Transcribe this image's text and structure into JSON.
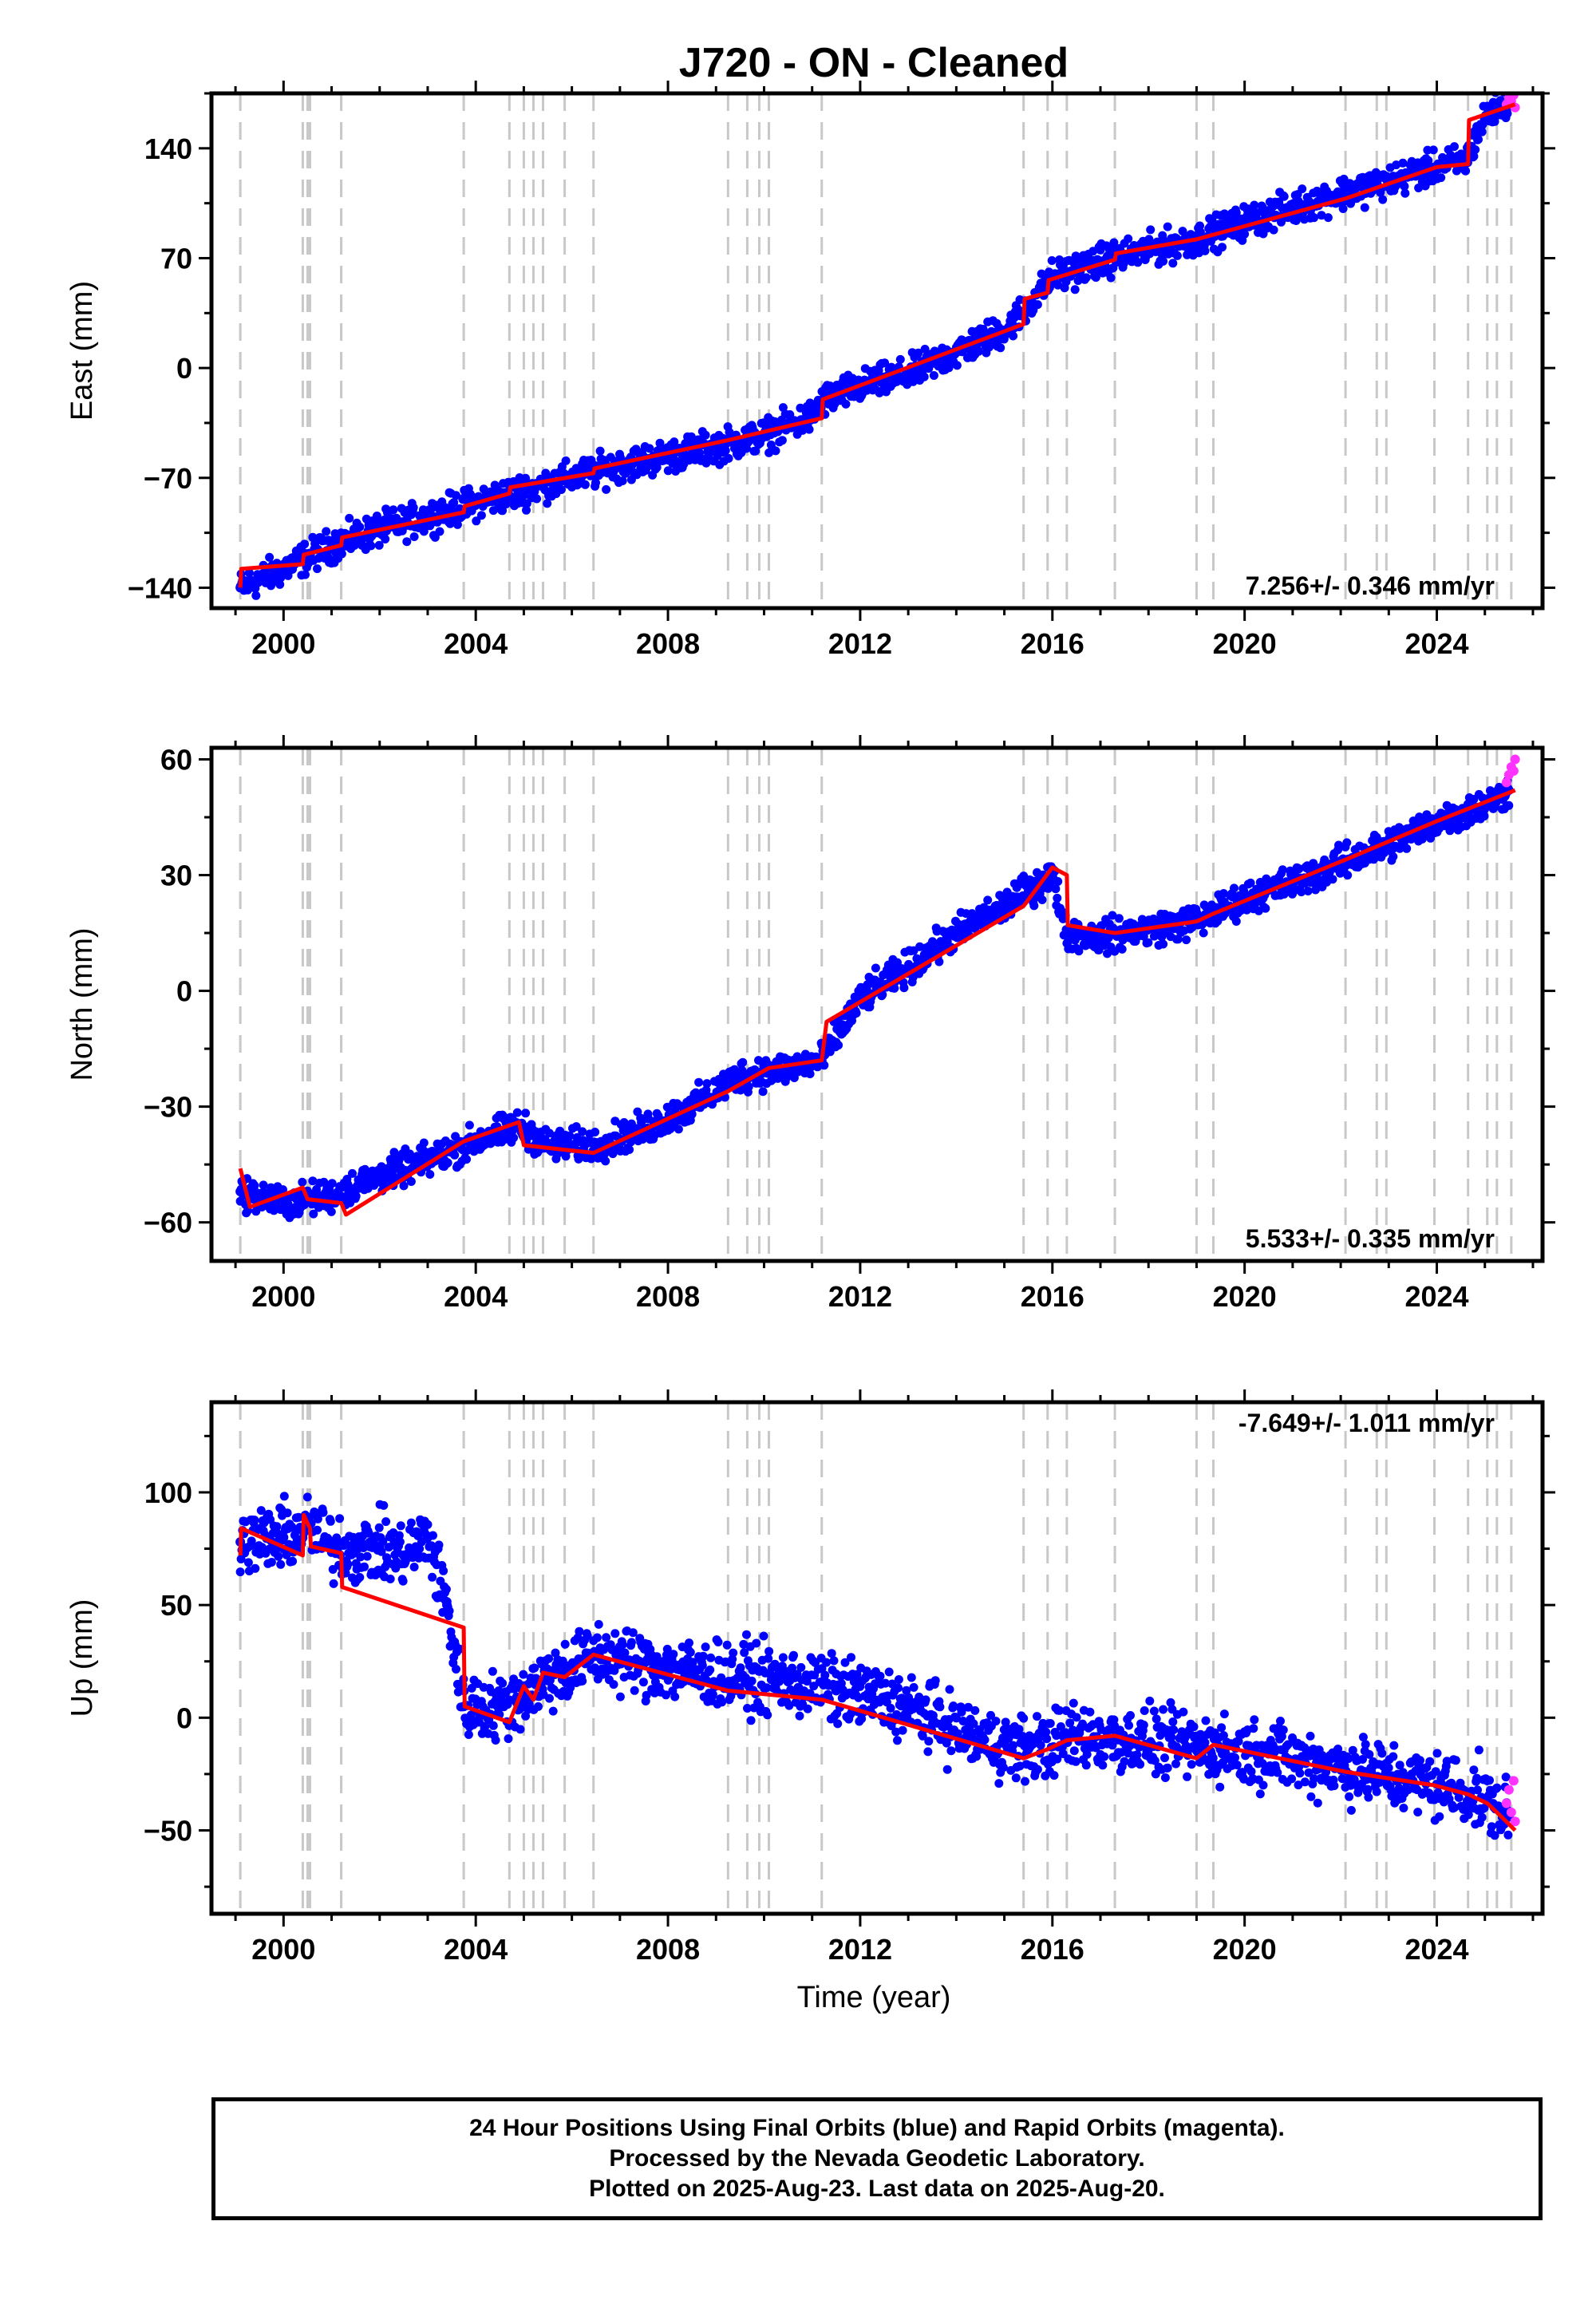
{
  "title": "J720  - ON - Cleaned",
  "xlabel": "Time (year)",
  "footer": {
    "line1": "24 Hour Positions Using Final Orbits (blue) and Rapid Orbits (magenta).",
    "line2": "Processed by the Nevada Geodetic Laboratory.",
    "line3": "Plotted on 2025-Aug-23. Last data on 2025-Aug-20."
  },
  "colors": {
    "final_orbits": "#0000ff",
    "rapid_orbits": "#ff33ff",
    "model": "#ff0000",
    "event_lines": "#c8c8c8"
  },
  "chart_data": [
    {
      "type": "scatter",
      "panel": "east",
      "ylabel": "East (mm)",
      "rate_label": "7.256+/- 0.346 mm/yr",
      "xlim": [
        1998.5,
        2026.2
      ],
      "ylim": [
        -153,
        175
      ],
      "xticks": [
        2000,
        2004,
        2008,
        2012,
        2016,
        2020,
        2024
      ],
      "yticks": [
        -140,
        -70,
        0,
        70,
        140
      ],
      "grid": false,
      "event_lines": [
        1999.1,
        2000.4,
        2000.5,
        2000.55,
        2001.2,
        2003.75,
        2004.7,
        2005.0,
        2005.2,
        2005.4,
        2005.85,
        2006.45,
        2009.25,
        2009.65,
        2009.9,
        2010.1,
        2011.2,
        2015.4,
        2015.9,
        2016.3,
        2017.3,
        2019.0,
        2019.35,
        2022.1,
        2022.75,
        2022.95,
        2023.95,
        2024.65,
        2025.05,
        2025.25,
        2025.55
      ],
      "series": [
        {
          "name": "Final Orbits",
          "role": "final",
          "x": [
            1999.1,
            2000.0,
            2001.0,
            2002.0,
            2003.0,
            2004.0,
            2005.0,
            2006.0,
            2007.0,
            2008.0,
            2009.0,
            2010.0,
            2011.0,
            2011.2,
            2012.0,
            2013.0,
            2014.0,
            2015.0,
            2015.5,
            2016.0,
            2017.0,
            2018.0,
            2019.0,
            2020.0,
            2021.0,
            2022.0,
            2023.0,
            2024.0,
            2024.6,
            2025.0,
            2025.5
          ],
          "y": [
            -140,
            -128,
            -113,
            -103,
            -95,
            -86,
            -78,
            -70,
            -62,
            -56,
            -50,
            -43,
            -31,
            -21,
            -12,
            -4,
            10,
            24,
            40,
            58,
            68,
            75,
            82,
            93,
            102,
            111,
            119,
            128,
            132,
            160,
            170
          ]
        },
        {
          "name": "Rapid Orbits",
          "role": "rapid",
          "x": [
            2025.45,
            2025.5,
            2025.55,
            2025.6,
            2025.63
          ],
          "y": [
            168,
            172,
            170,
            174,
            166
          ]
        },
        {
          "name": "Model",
          "role": "model",
          "x": [
            1999.1,
            1999.12,
            2000.4,
            2000.42,
            2001.2,
            2001.22,
            2003.75,
            2003.77,
            2004.7,
            2004.72,
            2006.45,
            2006.47,
            2009.25,
            2011.2,
            2011.22,
            2015.4,
            2015.42,
            2015.9,
            2015.92,
            2017.3,
            2017.32,
            2019.0,
            2022.1,
            2024.0,
            2024.65,
            2024.67,
            2025.63
          ],
          "y": [
            -140,
            -128,
            -125,
            -119,
            -113,
            -108,
            -92,
            -88,
            -80,
            -76,
            -67,
            -64,
            -46,
            -32,
            -20,
            28,
            44,
            48,
            56,
            69,
            73,
            82,
            108,
            128,
            130,
            158,
            168
          ]
        }
      ]
    },
    {
      "type": "scatter",
      "panel": "north",
      "ylabel": "North (mm)",
      "rate_label": "5.533+/- 0.335 mm/yr",
      "xlim": [
        1998.5,
        2026.2
      ],
      "ylim": [
        -70,
        63
      ],
      "xticks": [
        2000,
        2004,
        2008,
        2012,
        2016,
        2020,
        2024
      ],
      "yticks": [
        -60,
        -30,
        0,
        30,
        60
      ],
      "grid": false,
      "event_lines": [
        1999.1,
        2000.4,
        2000.5,
        2000.55,
        2001.2,
        2003.75,
        2004.7,
        2005.0,
        2005.2,
        2005.4,
        2005.85,
        2006.45,
        2009.25,
        2009.65,
        2009.9,
        2010.1,
        2011.2,
        2015.4,
        2015.9,
        2016.3,
        2017.3,
        2019.0,
        2019.35,
        2022.1,
        2022.75,
        2022.95,
        2023.95,
        2024.65,
        2025.05,
        2025.25,
        2025.55
      ],
      "series": [
        {
          "name": "Final Orbits",
          "role": "final",
          "x": [
            1999.1,
            2000.0,
            2001.0,
            2002.0,
            2003.0,
            2004.0,
            2004.9,
            2005.5,
            2006.5,
            2007.5,
            2008.5,
            2009.5,
            2010.5,
            2011.2,
            2012.0,
            2013.0,
            2014.0,
            2015.0,
            2016.0,
            2016.3,
            2017.0,
            2018.0,
            2019.0,
            2020.0,
            2021.0,
            2022.0,
            2023.0,
            2024.0,
            2025.0,
            2025.5
          ],
          "y": [
            -52,
            -55,
            -53,
            -48,
            -44,
            -39,
            -35,
            -40,
            -40,
            -36,
            -30,
            -22,
            -20,
            -18,
            -2,
            6,
            15,
            22,
            30,
            15,
            14,
            16,
            18,
            24,
            28,
            33,
            38,
            44,
            48,
            52
          ]
        },
        {
          "name": "Rapid Orbits",
          "role": "rapid",
          "x": [
            2025.45,
            2025.5,
            2025.55,
            2025.6,
            2025.63
          ],
          "y": [
            54,
            56,
            58,
            57,
            60
          ]
        },
        {
          "name": "Model",
          "role": "model",
          "x": [
            1999.1,
            1999.3,
            2000.4,
            2000.5,
            2001.2,
            2001.3,
            2003.75,
            2004.9,
            2005.0,
            2006.45,
            2009.25,
            2010.1,
            2011.2,
            2011.3,
            2015.4,
            2016.0,
            2016.3,
            2016.32,
            2017.3,
            2019.0,
            2019.35,
            2022.1,
            2024.0,
            2025.63
          ],
          "y": [
            -46,
            -56,
            -51,
            -54,
            -55,
            -58,
            -39,
            -34,
            -40,
            -42,
            -26,
            -20,
            -18,
            -8,
            22,
            32,
            30,
            17,
            15,
            18,
            20,
            34,
            44,
            52
          ]
        }
      ]
    },
    {
      "type": "scatter",
      "panel": "up",
      "ylabel": "Up (mm)",
      "rate_label": "-7.649+/- 1.011 mm/yr",
      "xlim": [
        1998.5,
        2026.2
      ],
      "ylim": [
        -87,
        140
      ],
      "xticks": [
        2000,
        2004,
        2008,
        2012,
        2016,
        2020,
        2024
      ],
      "yticks": [
        -50,
        0,
        50,
        100
      ],
      "grid": false,
      "event_lines": [
        1999.1,
        2000.4,
        2000.5,
        2000.55,
        2001.2,
        2003.75,
        2004.7,
        2005.0,
        2005.2,
        2005.4,
        2005.85,
        2006.45,
        2009.25,
        2009.65,
        2009.9,
        2010.1,
        2011.2,
        2015.4,
        2015.9,
        2016.3,
        2017.3,
        2019.0,
        2019.35,
        2022.1,
        2022.75,
        2022.95,
        2023.95,
        2024.65,
        2025.05,
        2025.25,
        2025.55
      ],
      "series": [
        {
          "name": "Final Orbits",
          "role": "final",
          "x": [
            1999.1,
            2000.0,
            2000.5,
            2001.0,
            2001.5,
            2002.0,
            2002.5,
            2003.0,
            2003.4,
            2003.75,
            2004.5,
            2005.0,
            2005.5,
            2006.0,
            2006.5,
            2007.5,
            2008.5,
            2009.5,
            2010.5,
            2011.5,
            2012.5,
            2013.5,
            2014.5,
            2015.5,
            2016.5,
            2017.5,
            2018.5,
            2019.5,
            2020.5,
            2021.5,
            2022.5,
            2023.5,
            2024.5,
            2025.0,
            2025.5
          ],
          "y": [
            78,
            80,
            84,
            76,
            74,
            76,
            72,
            80,
            50,
            5,
            5,
            10,
            18,
            22,
            28,
            24,
            20,
            18,
            16,
            12,
            8,
            0,
            -10,
            -14,
            -8,
            -10,
            -12,
            -14,
            -16,
            -20,
            -24,
            -28,
            -32,
            -36,
            -44
          ]
        },
        {
          "name": "Rapid Orbits",
          "role": "rapid",
          "x": [
            2025.45,
            2025.5,
            2025.55,
            2025.6,
            2025.63
          ],
          "y": [
            -38,
            -32,
            -42,
            -28,
            -46
          ]
        },
        {
          "name": "Model",
          "role": "model",
          "x": [
            1999.1,
            1999.12,
            2000.4,
            2000.42,
            2000.55,
            2000.57,
            2001.2,
            2001.22,
            2003.75,
            2003.77,
            2004.7,
            2005.0,
            2005.2,
            2005.4,
            2005.85,
            2006.45,
            2009.25,
            2011.2,
            2015.4,
            2015.9,
            2016.3,
            2017.3,
            2019.0,
            2019.35,
            2022.1,
            2023.95,
            2024.65,
            2025.05,
            2025.25,
            2025.63
          ],
          "y": [
            72,
            84,
            72,
            90,
            84,
            76,
            73,
            58,
            40,
            5,
            -2,
            14,
            8,
            20,
            18,
            28,
            12,
            8,
            -18,
            -14,
            -10,
            -8,
            -18,
            -12,
            -24,
            -30,
            -34,
            -38,
            -42,
            -50
          ]
        }
      ]
    }
  ]
}
